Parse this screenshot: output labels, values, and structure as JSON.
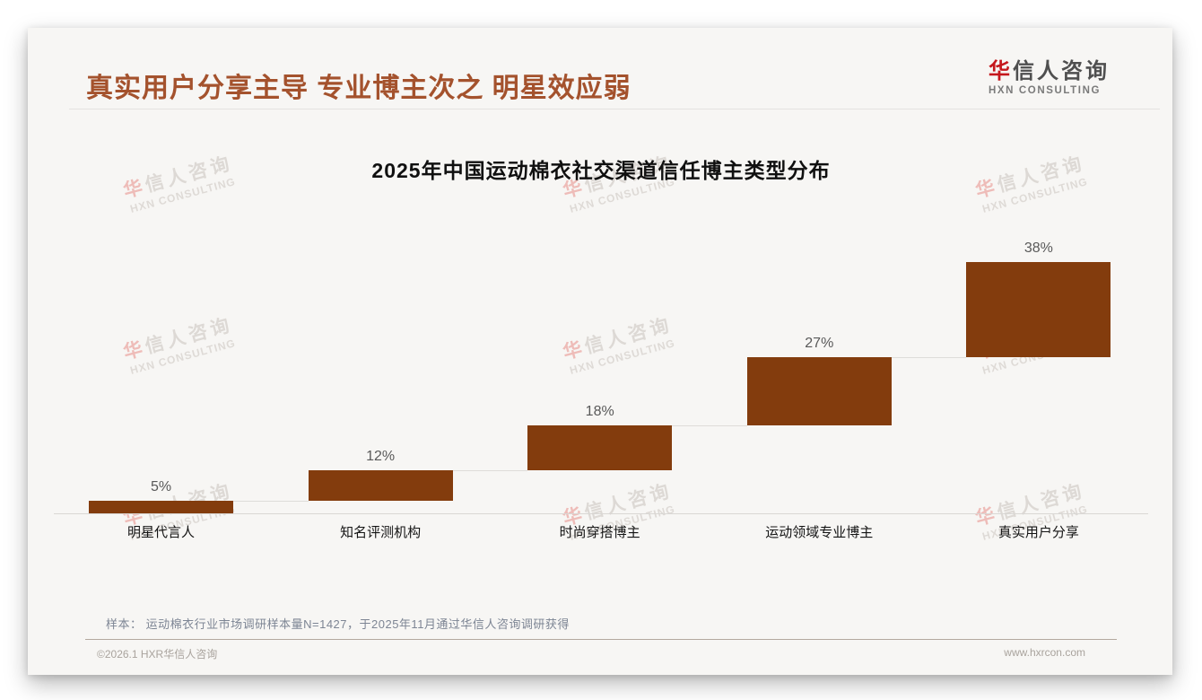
{
  "page": {
    "headline": "真实用户分享主导 专业博主次之 明星效应弱",
    "logo": {
      "cn_first": "华",
      "cn_rest": "信人咨询",
      "en": "HXN CONSULTING"
    },
    "note": "样本： 运动棉衣行业市场调研样本量N=1427，于2025年11月通过华信人咨询调研获得",
    "footer_left": "©2026.1 HXR华信人咨询",
    "footer_right": "www.hxrcon.com",
    "watermark": {
      "cn": "华信人咨询",
      "en": "HXN CONSULTING"
    }
  },
  "colors": {
    "headline": "#A4522D",
    "bar": "#833C0D",
    "logo_red": "#C5171C",
    "value_label": "#595959",
    "note_text": "#7D8594"
  },
  "chart_data": {
    "type": "bar",
    "subtype": "cumulative-staircase",
    "title": "2025年中国运动棉衣社交渠道信任博主类型分布",
    "categories": [
      "明星代言人",
      "知名评测机构",
      "时尚穿搭博主",
      "运动领域专业博主",
      "真实用户分享"
    ],
    "values": [
      5,
      12,
      18,
      27,
      38
    ],
    "labels": [
      "5%",
      "12%",
      "18%",
      "27%",
      "38%"
    ],
    "unit": "%",
    "ylim": [
      0,
      100
    ],
    "cumulative_total": 100,
    "bar_color": "#833C0D",
    "grid": false,
    "legend": "none"
  }
}
